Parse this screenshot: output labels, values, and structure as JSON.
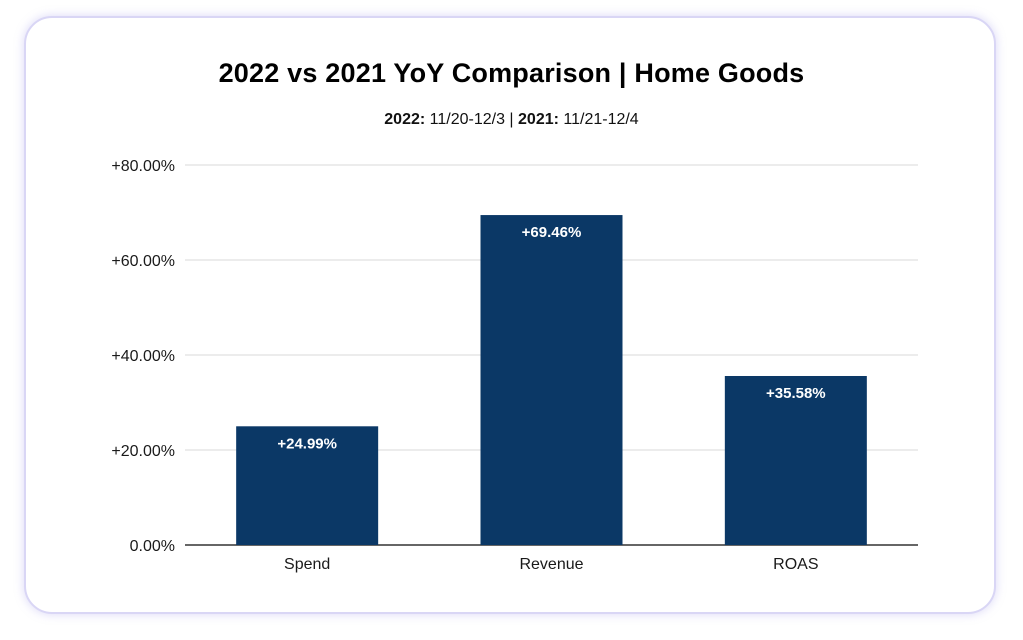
{
  "chart_data": {
    "type": "bar",
    "title": "2022 vs 2021 YoY Comparison | Home Goods",
    "subtitle": {
      "label_2022": "2022:",
      "range_2022": " 11/20-12/3 | ",
      "label_2021": "2021:",
      "range_2021": " 11/21-12/4"
    },
    "categories": [
      "Spend",
      "Revenue",
      "ROAS"
    ],
    "values": [
      24.99,
      69.46,
      35.58
    ],
    "data_labels": [
      "+24.99%",
      "+69.46%",
      "+35.58%"
    ],
    "yticks": [
      0,
      20,
      40,
      60,
      80
    ],
    "ytick_labels": [
      "0.00%",
      "+20.00%",
      "+40.00%",
      "+60.00%",
      "+80.00%"
    ],
    "ylim": [
      0,
      80
    ],
    "xlabel": "",
    "ylabel": "",
    "grid": true,
    "legend": "none"
  },
  "colors": {
    "bar": "#0b3866",
    "grid": "#d9d9d9",
    "axis": "#333333",
    "frame_border": "#d9d6f5"
  }
}
